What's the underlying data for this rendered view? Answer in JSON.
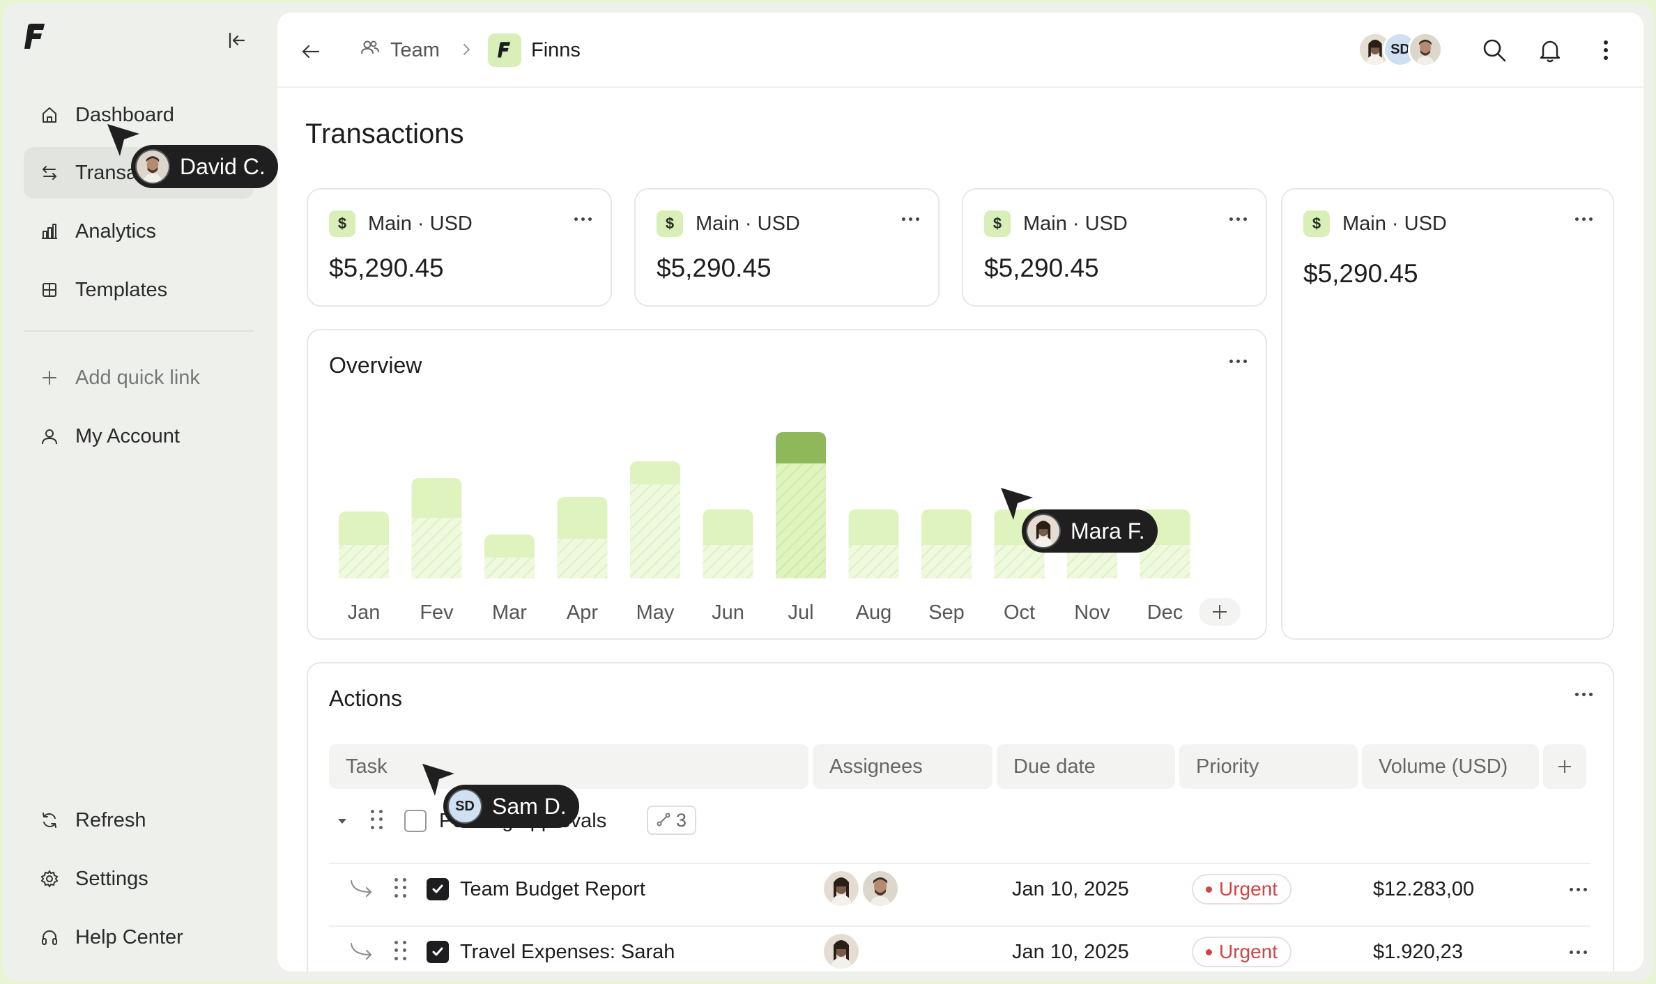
{
  "sidebar": {
    "nav": [
      {
        "label": "Dashboard",
        "icon": "home-icon"
      },
      {
        "label": "Transactions",
        "icon": "swap-icon"
      },
      {
        "label": "Analytics",
        "icon": "bar-chart-icon"
      },
      {
        "label": "Templates",
        "icon": "grid-icon"
      }
    ],
    "add_quick_link": "Add quick link",
    "my_account": "My Account",
    "bottom": [
      {
        "label": "Refresh",
        "icon": "refresh-icon"
      },
      {
        "label": "Settings",
        "icon": "gear-icon"
      },
      {
        "label": "Help Center",
        "icon": "headset-icon"
      }
    ]
  },
  "topbar": {
    "breadcrumb_team": "Team",
    "breadcrumb_workspace": "Finns",
    "avatar_initials": "SD"
  },
  "page": {
    "title": "Transactions"
  },
  "accounts": [
    {
      "name": "Main · USD",
      "amount": "$5,290.45"
    },
    {
      "name": "Main · USD",
      "amount": "$5,290.45"
    },
    {
      "name": "Main · USD",
      "amount": "$5,290.45"
    },
    {
      "name": "Main · USD",
      "amount": "$5,290.45"
    }
  ],
  "overview": {
    "title": "Overview",
    "chart_data": {
      "type": "bar",
      "categories": [
        "Jan",
        "Fev",
        "Mar",
        "Apr",
        "May",
        "Jun",
        "Jul",
        "Aug",
        "Sep",
        "Oct",
        "Nov",
        "Dec"
      ],
      "series": [
        {
          "values": [
            32,
            48,
            21,
            39,
            56,
            33,
            70,
            33,
            33,
            33,
            33,
            33
          ]
        },
        {
          "values": [
            16,
            29,
            10,
            19,
            45,
            16,
            55,
            16,
            16,
            16,
            16,
            16
          ]
        }
      ],
      "highlight_index": 6,
      "colors": {
        "bar": "#dff3bf",
        "highlight": "#8fb85a"
      }
    }
  },
  "actions": {
    "title": "Actions",
    "columns": [
      "Task",
      "Assignees",
      "Due date",
      "Priority",
      "Volume (USD)"
    ],
    "group": {
      "label": "Pending approvals",
      "subtasks": "3"
    },
    "rows": [
      {
        "task": "Team Budget Report",
        "due": "Jan 10, 2025",
        "priority": "Urgent",
        "volume": "$12.283,00"
      },
      {
        "task": "Travel Expenses: Sarah",
        "due": "Jan 10, 2025",
        "priority": "Urgent",
        "volume": "$1.920,23"
      }
    ]
  },
  "cursors": [
    {
      "name": "David C."
    },
    {
      "name": "Mara F."
    },
    {
      "name": "Sam D.",
      "initials": "SD"
    }
  ]
}
